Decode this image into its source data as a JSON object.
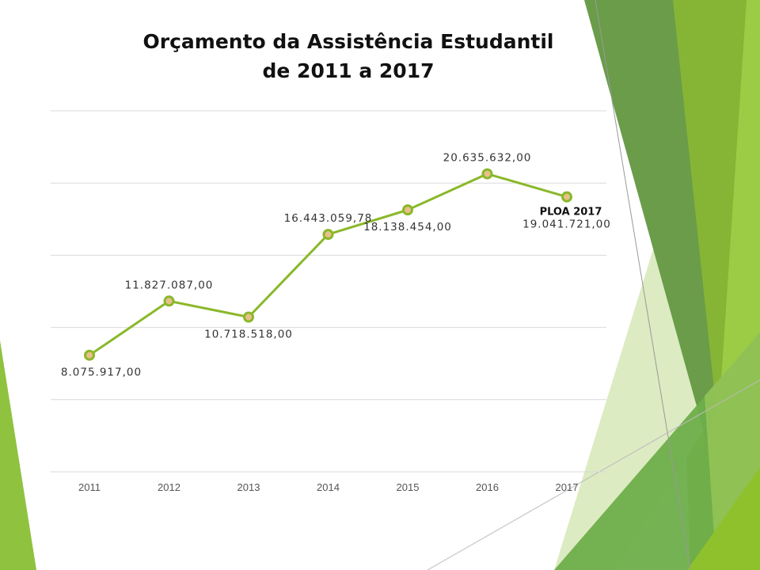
{
  "chart_data": {
    "type": "line",
    "title": "Orçamento da Assistência Estudantil",
    "subtitle": "de 2011 a 2017",
    "categories": [
      "2011",
      "2012",
      "2013",
      "2014",
      "2015",
      "2016",
      "2017"
    ],
    "series": [
      {
        "name": "Orçamento",
        "values": [
          8075917.0,
          11827087.0,
          10718518.0,
          16443059.78,
          18138454.0,
          20635632.0,
          19041721.0
        ]
      }
    ],
    "data_labels": [
      "8.075.917,00",
      "11.827.087,00",
      "10.718.518,00",
      "16.443.059,78",
      "18.138.454,00",
      "20.635.632,00",
      "19.041.721,00"
    ],
    "annotations": [
      {
        "category": "2017",
        "text": "PLOA 2017"
      }
    ],
    "xlabel": "",
    "ylabel": "",
    "ylim": [
      0,
      25000000
    ],
    "y_gridlines": [
      0,
      5000000,
      10000000,
      15000000,
      20000000,
      25000000
    ],
    "grid": true,
    "legend": "none",
    "colors": {
      "line": "#8ab82a",
      "marker_fill": "#e8c08a",
      "grid": "#d9d9d9"
    }
  }
}
